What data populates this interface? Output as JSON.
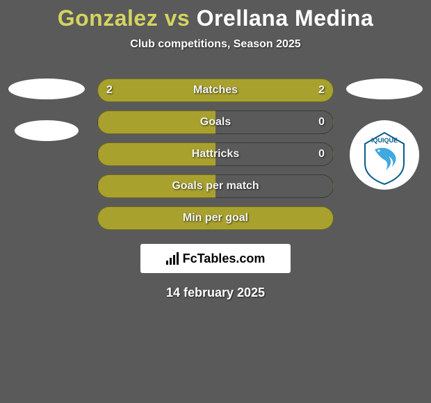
{
  "colors": {
    "background": "#5a5a5a",
    "title_left": "#d4d460",
    "title_right": "#ffffff",
    "bar_fill": "#a8a12e",
    "bar_empty": "#5a5a5a",
    "text_light": "#ffffff",
    "footer_bg": "#ffffff",
    "footer_text": "#000000",
    "badge_bg": "#ffffff",
    "badge_shape": "#3fa9e0",
    "badge_text": "#0a5c8a"
  },
  "title": {
    "player1": "Gonzalez",
    "vs": " vs ",
    "player2": "Orellana Medina"
  },
  "subtitle": "Club competitions, Season 2025",
  "badge": {
    "text": "IQUIQUE"
  },
  "bars": [
    {
      "label": "Matches",
      "left": "2",
      "right": "2",
      "left_filled": true,
      "right_filled": true
    },
    {
      "label": "Goals",
      "left": "",
      "right": "0",
      "left_filled": true,
      "right_filled": false
    },
    {
      "label": "Hattricks",
      "left": "",
      "right": "0",
      "left_filled": true,
      "right_filled": false
    },
    {
      "label": "Goals per match",
      "left": "",
      "right": "",
      "left_filled": true,
      "right_filled": false
    },
    {
      "label": "Min per goal",
      "left": "",
      "right": "",
      "left_filled": true,
      "right_filled": true
    }
  ],
  "footer": {
    "logo_text": "FcTables.com",
    "date": "14 february 2025"
  }
}
